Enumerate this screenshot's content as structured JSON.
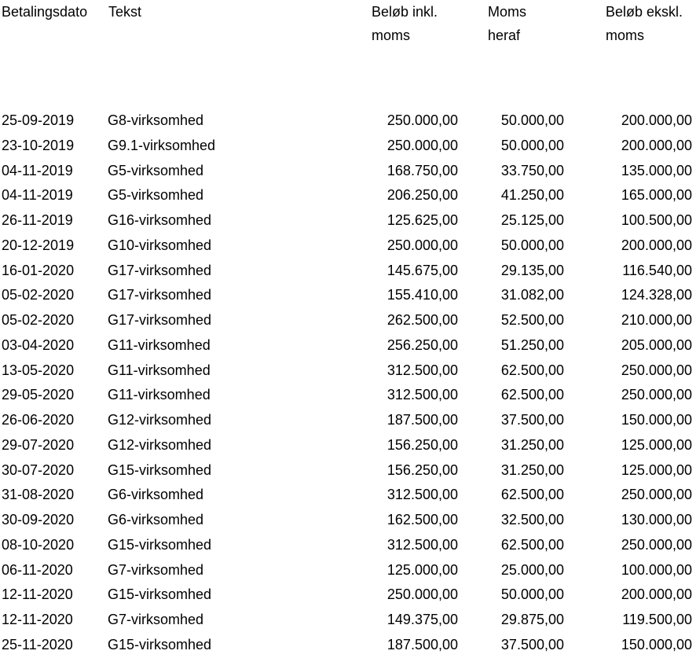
{
  "table": {
    "headers": [
      "Betalingsdato",
      "Tekst",
      "Beløb inkl. moms",
      "Moms heraf",
      "Beløb ekskl. moms"
    ],
    "rows": [
      [
        "25-09-2019",
        "G8-virksomhed",
        "250.000,00",
        "50.000,00",
        "200.000,00"
      ],
      [
        "23-10-2019",
        "G9.1-virksomhed",
        "250.000,00",
        "50.000,00",
        "200.000,00"
      ],
      [
        "04-11-2019",
        "G5-virksomhed",
        "168.750,00",
        "33.750,00",
        "135.000,00"
      ],
      [
        "04-11-2019",
        "G5-virksomhed",
        "206.250,00",
        "41.250,00",
        "165.000,00"
      ],
      [
        "26-11-2019",
        "G16-virksomhed",
        "125.625,00",
        "25.125,00",
        "100.500,00"
      ],
      [
        "20-12-2019",
        "G10-virksomhed",
        "250.000,00",
        "50.000,00",
        "200.000,00"
      ],
      [
        "16-01-2020",
        "G17-virksomhed",
        "145.675,00",
        "29.135,00",
        "116.540,00"
      ],
      [
        "05-02-2020",
        "G17-virksomhed",
        "155.410,00",
        "31.082,00",
        "124.328,00"
      ],
      [
        "05-02-2020",
        "G17-virksomhed",
        "262.500,00",
        "52.500,00",
        "210.000,00"
      ],
      [
        "03-04-2020",
        "G11-virksomhed",
        "256.250,00",
        "51.250,00",
        "205.000,00"
      ],
      [
        "13-05-2020",
        "G11-virksomhed",
        "312.500,00",
        "62.500,00",
        "250.000,00"
      ],
      [
        "29-05-2020",
        "G11-virksomhed",
        "312.500,00",
        "62.500,00",
        "250.000,00"
      ],
      [
        "26-06-2020",
        "G12-virksomhed",
        "187.500,00",
        "37.500,00",
        "150.000,00"
      ],
      [
        "29-07-2020",
        "G12-virksomhed",
        "156.250,00",
        "31.250,00",
        "125.000,00"
      ],
      [
        "30-07-2020",
        "G15-virksomhed",
        "156.250,00",
        "31.250,00",
        "125.000,00"
      ],
      [
        "31-08-2020",
        "G6-virksomhed",
        "312.500,00",
        "62.500,00",
        "250.000,00"
      ],
      [
        "30-09-2020",
        "G6-virksomhed",
        "162.500,00",
        "32.500,00",
        "130.000,00"
      ],
      [
        "08-10-2020",
        "G15-virksomhed",
        "312.500,00",
        "62.500,00",
        "250.000,00"
      ],
      [
        "06-11-2020",
        "G7-virksomhed",
        "125.000,00",
        "25.000,00",
        "100.000,00"
      ],
      [
        "12-11-2020",
        "G15-virksomhed",
        "250.000,00",
        "50.000,00",
        "200.000,00"
      ],
      [
        "12-11-2020",
        "G7-virksomhed",
        "149.375,00",
        "29.875,00",
        "119.500,00"
      ],
      [
        "25-11-2020",
        "G15-virksomhed",
        "187.500,00",
        "37.500,00",
        "150.000,00"
      ]
    ]
  }
}
